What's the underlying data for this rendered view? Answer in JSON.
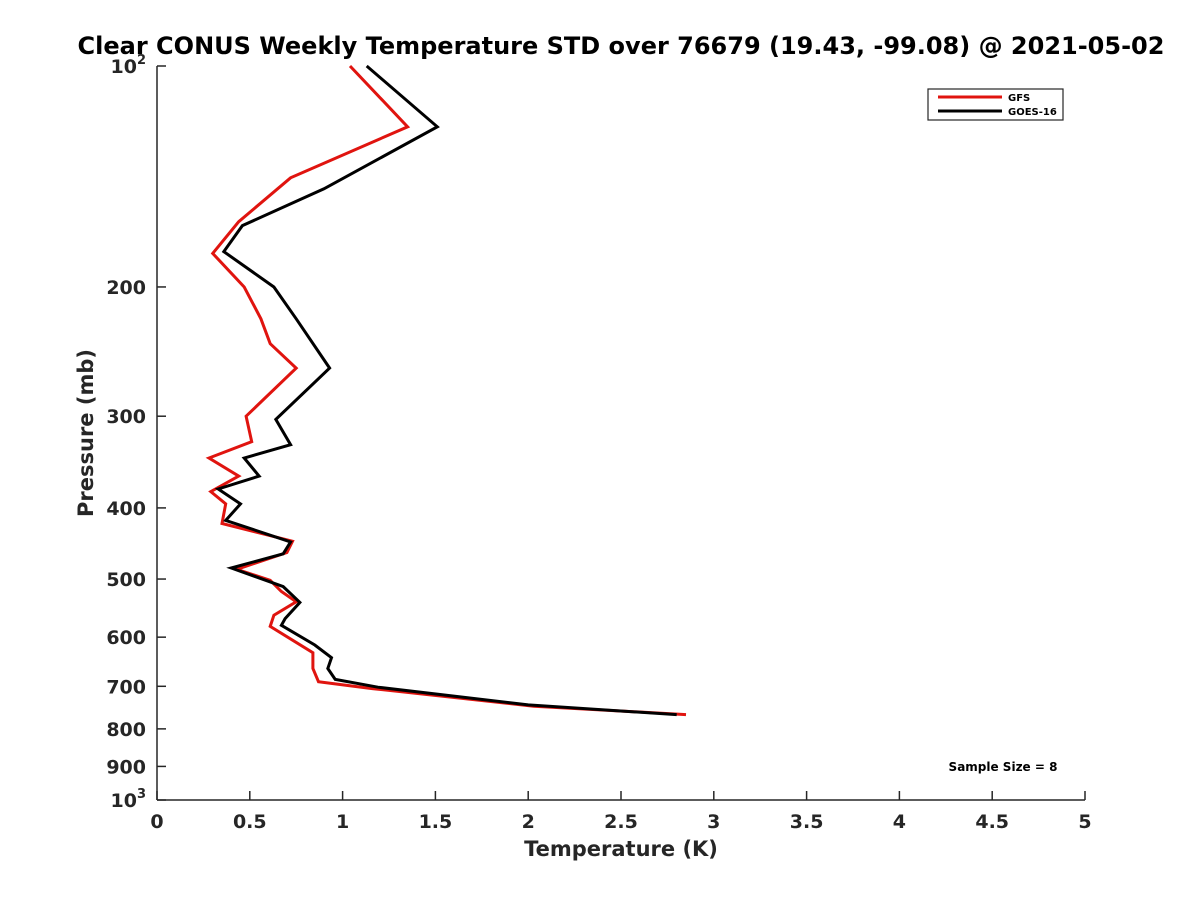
{
  "chart_data": {
    "type": "line",
    "title": "Clear CONUS Weekly Temperature STD over 76679 (19.43, -99.08) @ 2021-05-02",
    "xlabel": "Temperature (K)",
    "ylabel": "Pressure (mb)",
    "xlim": [
      0,
      5
    ],
    "ylim": [
      100,
      1000
    ],
    "y_scale": "log",
    "y_reversed": true,
    "grid": false,
    "legend_position": "top-right",
    "x_ticks": [
      "0",
      "0.5",
      "1",
      "1.5",
      "2",
      "2.5",
      "3",
      "3.5",
      "4",
      "4.5",
      "5"
    ],
    "y_ticks": [
      {
        "value": 100,
        "label": "10",
        "exp": "2"
      },
      {
        "value": 200,
        "label": "200"
      },
      {
        "value": 300,
        "label": "300"
      },
      {
        "value": 400,
        "label": "400"
      },
      {
        "value": 500,
        "label": "500"
      },
      {
        "value": 600,
        "label": "600"
      },
      {
        "value": 700,
        "label": "700"
      },
      {
        "value": 800,
        "label": "800"
      },
      {
        "value": 900,
        "label": "900"
      },
      {
        "value": 1000,
        "label": "10",
        "exp": "3"
      }
    ],
    "series": [
      {
        "name": "GFS",
        "color": "#e0140f",
        "points": [
          [
            1.04,
            100
          ],
          [
            1.35,
            121
          ],
          [
            0.72,
            142
          ],
          [
            0.44,
            163
          ],
          [
            0.3,
            180
          ],
          [
            0.47,
            200
          ],
          [
            0.56,
            221
          ],
          [
            0.61,
            239
          ],
          [
            0.75,
            258
          ],
          [
            0.48,
            300
          ],
          [
            0.51,
            325
          ],
          [
            0.28,
            342
          ],
          [
            0.44,
            362
          ],
          [
            0.29,
            380
          ],
          [
            0.37,
            395
          ],
          [
            0.35,
            420
          ],
          [
            0.73,
            444
          ],
          [
            0.7,
            460
          ],
          [
            0.43,
            485
          ],
          [
            0.61,
            502
          ],
          [
            0.67,
            520
          ],
          [
            0.75,
            537
          ],
          [
            0.63,
            560
          ],
          [
            0.61,
            580
          ],
          [
            0.84,
            630
          ],
          [
            0.84,
            662
          ],
          [
            0.87,
            690
          ],
          [
            1.16,
            705
          ],
          [
            2.03,
            745
          ],
          [
            2.85,
            765
          ]
        ]
      },
      {
        "name": "GOES-16",
        "color": "#000000",
        "points": [
          [
            1.13,
            100
          ],
          [
            1.51,
            121
          ],
          [
            0.9,
            147
          ],
          [
            0.46,
            165
          ],
          [
            0.36,
            179
          ],
          [
            0.63,
            200
          ],
          [
            0.75,
            221
          ],
          [
            0.93,
            258
          ],
          [
            0.64,
            303
          ],
          [
            0.72,
            328
          ],
          [
            0.47,
            342
          ],
          [
            0.55,
            362
          ],
          [
            0.33,
            377
          ],
          [
            0.45,
            395
          ],
          [
            0.37,
            416
          ],
          [
            0.72,
            445
          ],
          [
            0.68,
            462
          ],
          [
            0.4,
            483
          ],
          [
            0.68,
            512
          ],
          [
            0.77,
            538
          ],
          [
            0.69,
            566
          ],
          [
            0.67,
            578
          ],
          [
            0.85,
            615
          ],
          [
            0.94,
            640
          ],
          [
            0.92,
            662
          ],
          [
            0.96,
            685
          ],
          [
            1.19,
            702
          ],
          [
            2.0,
            742
          ],
          [
            2.8,
            765
          ]
        ]
      }
    ],
    "annotations": [
      "Sample Size = 8"
    ]
  }
}
